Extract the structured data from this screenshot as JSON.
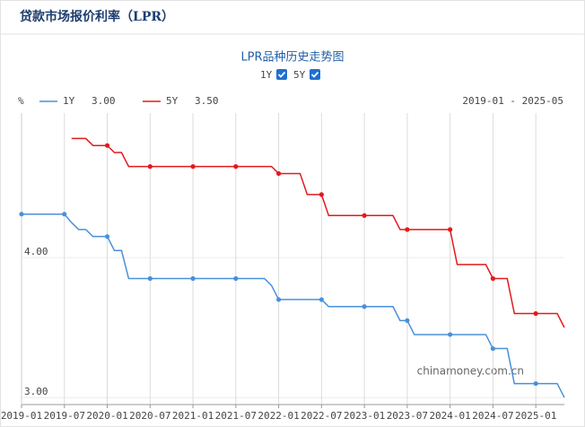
{
  "header": {
    "title": "贷款市场报价利率（LPR）"
  },
  "chart_data": {
    "type": "line",
    "title": "LPR品种历史走势图",
    "y_unit": "%",
    "date_range": "2019-01 - 2025-05",
    "watermark": "chinamoney.com.cn",
    "x": [
      "2019-01",
      "2019-02",
      "2019-03",
      "2019-04",
      "2019-05",
      "2019-06",
      "2019-07",
      "2019-08",
      "2019-09",
      "2019-10",
      "2019-11",
      "2019-12",
      "2020-01",
      "2020-02",
      "2020-03",
      "2020-04",
      "2020-05",
      "2020-06",
      "2020-07",
      "2020-08",
      "2020-09",
      "2020-10",
      "2020-11",
      "2020-12",
      "2021-01",
      "2021-02",
      "2021-03",
      "2021-04",
      "2021-05",
      "2021-06",
      "2021-07",
      "2021-08",
      "2021-09",
      "2021-10",
      "2021-11",
      "2021-12",
      "2022-01",
      "2022-02",
      "2022-03",
      "2022-04",
      "2022-05",
      "2022-06",
      "2022-07",
      "2022-08",
      "2022-09",
      "2022-10",
      "2022-11",
      "2022-12",
      "2023-01",
      "2023-02",
      "2023-03",
      "2023-04",
      "2023-05",
      "2023-06",
      "2023-07",
      "2023-08",
      "2023-09",
      "2023-10",
      "2023-11",
      "2023-12",
      "2024-01",
      "2024-02",
      "2024-03",
      "2024-04",
      "2024-05",
      "2024-06",
      "2024-07",
      "2024-08",
      "2024-09",
      "2024-10",
      "2024-11",
      "2024-12",
      "2025-01",
      "2025-02",
      "2025-03",
      "2025-04",
      "2025-05"
    ],
    "series": [
      {
        "name": "1Y",
        "color": "#4a90d9",
        "latest_label": "3.00",
        "values": [
          4.31,
          4.31,
          4.31,
          4.31,
          4.31,
          4.31,
          4.31,
          4.25,
          4.2,
          4.2,
          4.15,
          4.15,
          4.15,
          4.05,
          4.05,
          3.85,
          3.85,
          3.85,
          3.85,
          3.85,
          3.85,
          3.85,
          3.85,
          3.85,
          3.85,
          3.85,
          3.85,
          3.85,
          3.85,
          3.85,
          3.85,
          3.85,
          3.85,
          3.85,
          3.85,
          3.8,
          3.7,
          3.7,
          3.7,
          3.7,
          3.7,
          3.7,
          3.7,
          3.65,
          3.65,
          3.65,
          3.65,
          3.65,
          3.65,
          3.65,
          3.65,
          3.65,
          3.65,
          3.55,
          3.55,
          3.45,
          3.45,
          3.45,
          3.45,
          3.45,
          3.45,
          3.45,
          3.45,
          3.45,
          3.45,
          3.45,
          3.35,
          3.35,
          3.35,
          3.1,
          3.1,
          3.1,
          3.1,
          3.1,
          3.1,
          3.1,
          3.0
        ]
      },
      {
        "name": "5Y",
        "color": "#e31a1c",
        "latest_label": "3.50",
        "values": [
          null,
          null,
          null,
          null,
          null,
          null,
          null,
          4.85,
          4.85,
          4.85,
          4.8,
          4.8,
          4.8,
          4.75,
          4.75,
          4.65,
          4.65,
          4.65,
          4.65,
          4.65,
          4.65,
          4.65,
          4.65,
          4.65,
          4.65,
          4.65,
          4.65,
          4.65,
          4.65,
          4.65,
          4.65,
          4.65,
          4.65,
          4.65,
          4.65,
          4.65,
          4.6,
          4.6,
          4.6,
          4.6,
          4.45,
          4.45,
          4.45,
          4.3,
          4.3,
          4.3,
          4.3,
          4.3,
          4.3,
          4.3,
          4.3,
          4.3,
          4.3,
          4.2,
          4.2,
          4.2,
          4.2,
          4.2,
          4.2,
          4.2,
          4.2,
          3.95,
          3.95,
          3.95,
          3.95,
          3.95,
          3.85,
          3.85,
          3.85,
          3.6,
          3.6,
          3.6,
          3.6,
          3.6,
          3.6,
          3.6,
          3.5
        ]
      }
    ],
    "ylim": [
      2.95,
      5.0
    ],
    "yticks": [
      {
        "value": 3,
        "label": "3.00"
      },
      {
        "value": 4,
        "label": "4.00"
      }
    ],
    "xticks": [
      "2019-01",
      "2019-07",
      "2020-01",
      "2020-07",
      "2021-01",
      "2021-07",
      "2022-01",
      "2022-07",
      "2023-01",
      "2023-07",
      "2024-01",
      "2024-07",
      "2025-01"
    ],
    "grid": true
  }
}
